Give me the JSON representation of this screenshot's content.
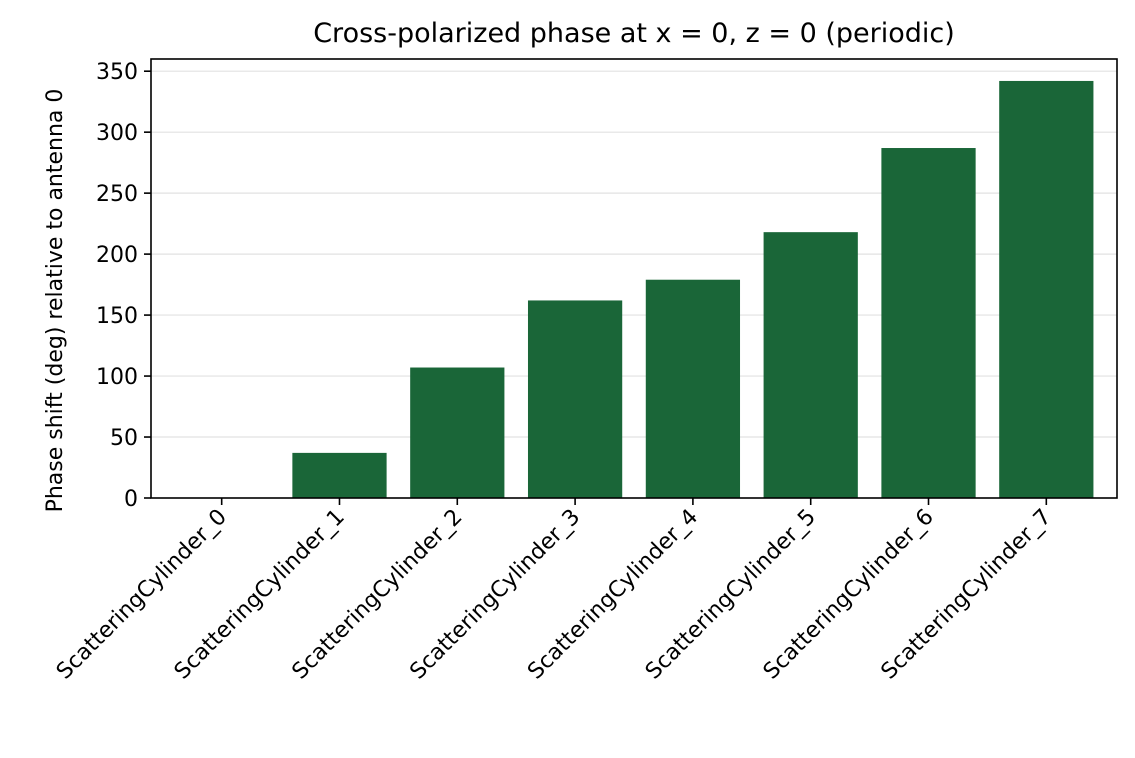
{
  "chart_data": {
    "type": "bar",
    "title": "Cross-polarized phase at x = 0, z = 0 (periodic)",
    "xlabel": "",
    "ylabel": "Phase shift (deg) relative to antenna 0",
    "categories": [
      "ScatteringCylinder_0",
      "ScatteringCylinder_1",
      "ScatteringCylinder_2",
      "ScatteringCylinder_3",
      "ScatteringCylinder_4",
      "ScatteringCylinder_5",
      "ScatteringCylinder_6",
      "ScatteringCylinder_7"
    ],
    "values": [
      0,
      37,
      107,
      162,
      179,
      218,
      287,
      342
    ],
    "ylim": [
      0,
      360
    ],
    "yticks": [
      0,
      50,
      100,
      150,
      200,
      250,
      300,
      350
    ],
    "grid": "horizontal",
    "legend": "none",
    "bar_color": "#1a6638"
  }
}
